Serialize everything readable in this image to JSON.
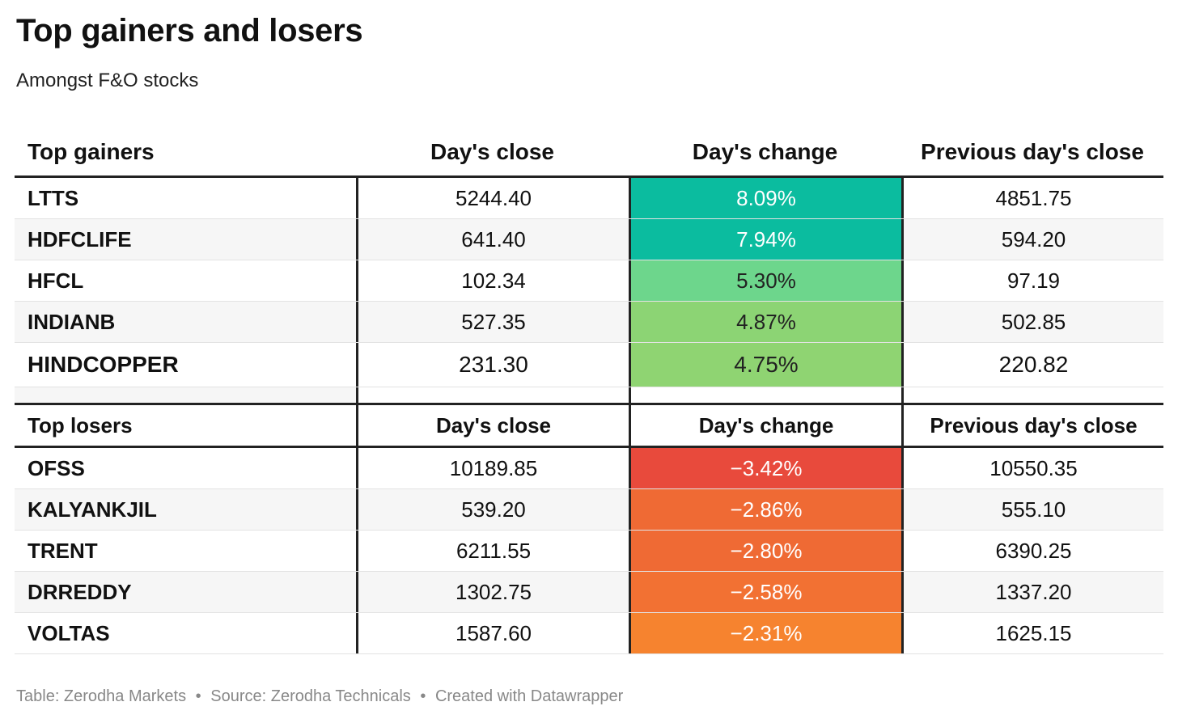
{
  "title": "Top gainers and losers",
  "subtitle": "Amongst F&O stocks",
  "chart_data": {
    "type": "table",
    "gainers": {
      "columns": [
        "Top gainers",
        "Day's close",
        "Day's change",
        "Previous day's close"
      ],
      "rows": [
        {
          "name": "LTTS",
          "close": "5244.40",
          "change": "8.09%",
          "prev": "4851.75",
          "color": "#0bbc9f",
          "text_color": "#ffffff"
        },
        {
          "name": "HDFCLIFE",
          "close": "641.40",
          "change": "7.94%",
          "prev": "594.20",
          "color": "#0bbc9f",
          "text_color": "#ffffff"
        },
        {
          "name": "HFCL",
          "close": "102.34",
          "change": "5.30%",
          "prev": "97.19",
          "color": "#6dd68c",
          "text_color": "#222222"
        },
        {
          "name": "INDIANB",
          "close": "527.35",
          "change": "4.87%",
          "prev": "502.85",
          "color": "#8cd474",
          "text_color": "#222222"
        },
        {
          "name": "HINDCOPPER",
          "close": "231.30",
          "change": "4.75%",
          "prev": "220.82",
          "color": "#8fd472",
          "text_color": "#222222"
        }
      ]
    },
    "losers": {
      "columns": [
        "Top losers",
        "Day's close",
        "Day's change",
        "Previous day's close"
      ],
      "rows": [
        {
          "name": "OFSS",
          "close": "10189.85",
          "change": "−3.42%",
          "prev": "10550.35",
          "color": "#e84a3c",
          "text_color": "#ffffff"
        },
        {
          "name": "KALYANKJIL",
          "close": "539.20",
          "change": "−2.86%",
          "prev": "555.10",
          "color": "#ef6a34",
          "text_color": "#ffffff"
        },
        {
          "name": "TRENT",
          "close": "6211.55",
          "change": "−2.80%",
          "prev": "6390.25",
          "color": "#ef6a34",
          "text_color": "#ffffff"
        },
        {
          "name": "DRREDDY",
          "close": "1302.75",
          "change": "−2.58%",
          "prev": "1337.20",
          "color": "#f27133",
          "text_color": "#ffffff"
        },
        {
          "name": "VOLTAS",
          "close": "1587.60",
          "change": "−2.31%",
          "prev": "1625.15",
          "color": "#f6832f",
          "text_color": "#ffffff"
        }
      ]
    }
  },
  "footer": {
    "table_credit": "Table: Zerodha Markets",
    "source": "Source: Zerodha Technicals",
    "created": "Created with Datawrapper",
    "separator": "•"
  }
}
